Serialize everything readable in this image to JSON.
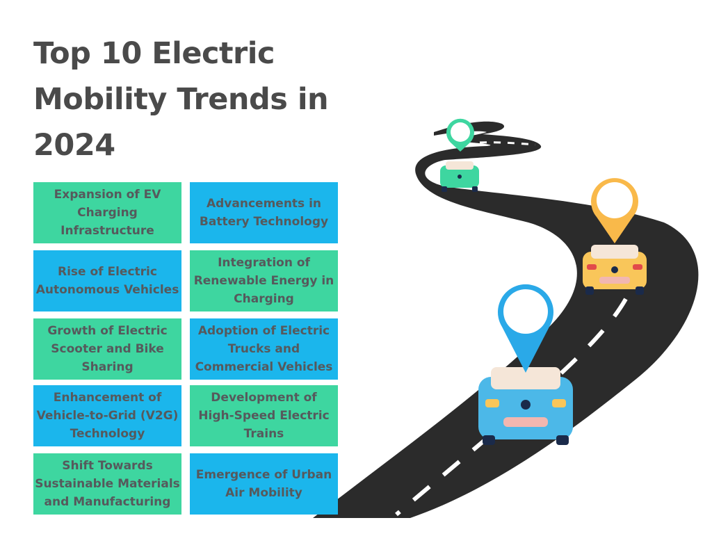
{
  "title": "Top 10 Electric\nMobility Trends in\n2024",
  "trends": [
    {
      "label": "Expansion of EV Charging Infrastructure",
      "color": "#3ed6a0"
    },
    {
      "label": "Advancements in Battery Technology",
      "color": "#1bb6ec"
    },
    {
      "label": "Rise of Electric Autonomous Vehicles",
      "color": "#1bb6ec"
    },
    {
      "label": "Integration of Renewable Energy in Charging",
      "color": "#3ed6a0"
    },
    {
      "label": "Growth of Electric Scooter and Bike Sharing",
      "color": "#3ed6a0"
    },
    {
      "label": "Adoption of Electric Trucks and Commercial Vehicles",
      "color": "#1bb6ec"
    },
    {
      "label": "Enhancement of Vehicle-to-Grid (V2G) Technology",
      "color": "#1bb6ec"
    },
    {
      "label": "Development of High-Speed Electric Trains",
      "color": "#3ed6a0"
    },
    {
      "label": "Shift Towards Sustainable Materials and Manufacturing",
      "color": "#3ed6a0"
    },
    {
      "label": "Emergence of Urban Air Mobility",
      "color": "#1bb6ec"
    }
  ],
  "illustration": {
    "road_color": "#2b2b2b",
    "cars": [
      {
        "body": "#3ed6a0",
        "pin": "#3ed6a0"
      },
      {
        "body": "#f9c65a",
        "pin": "#f9b94a"
      },
      {
        "body": "#4cb8e8",
        "pin": "#2aa9e8"
      }
    ]
  }
}
